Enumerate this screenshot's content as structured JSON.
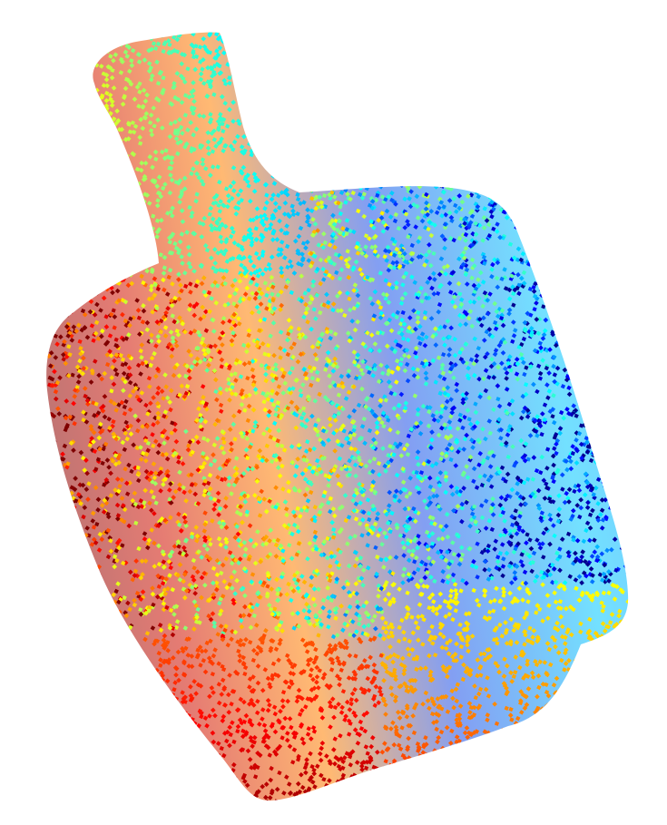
{
  "scene": {
    "object": "bottle-point-cloud",
    "background_color": "#ffffff",
    "colormap": "jet",
    "colormap_stops": [
      "#00008f",
      "#0000ff",
      "#00ffff",
      "#7fff7f",
      "#ffff00",
      "#ff8000",
      "#ff0000",
      "#7f0000"
    ]
  }
}
